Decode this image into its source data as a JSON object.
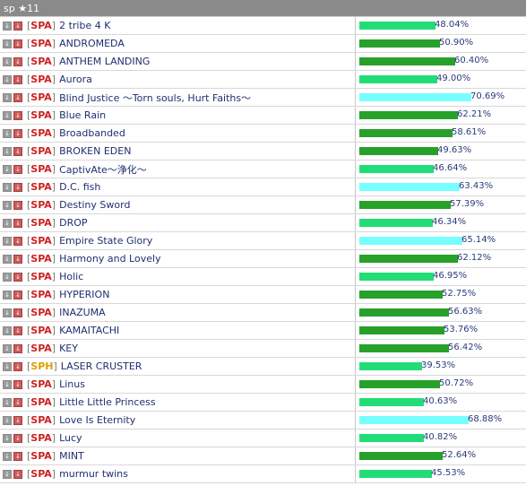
{
  "header": {
    "title": "sp ★11"
  },
  "colors": {
    "spa_tag": "#cc2222",
    "sph_tag": "#e0a000",
    "bar_green_light": "#22dd77",
    "bar_green_dark": "#27a12a",
    "bar_cyan": "#77ffff"
  },
  "icons": [
    "down-arrow-icon",
    "down-arrow-red-icon",
    "right-arrow-icon"
  ],
  "rows": [
    {
      "tag": "SPA",
      "title": "2 tribe 4 K",
      "percent": "48.04%",
      "value": 48.04,
      "color": "#22dd77"
    },
    {
      "tag": "SPA",
      "title": "ANDROMEDA",
      "percent": "50.90%",
      "value": 50.9,
      "color": "#27a12a"
    },
    {
      "tag": "SPA",
      "title": "ANTHEM LANDING",
      "percent": "60.40%",
      "value": 60.4,
      "color": "#27a12a"
    },
    {
      "tag": "SPA",
      "title": "Aurora",
      "percent": "49.00%",
      "value": 49.0,
      "color": "#22dd77"
    },
    {
      "tag": "SPA",
      "title": "Blind Justice ～Torn souls, Hurt Faiths～",
      "percent": "70.69%",
      "value": 70.69,
      "color": "#77ffff"
    },
    {
      "tag": "SPA",
      "title": "Blue Rain",
      "percent": "62.21%",
      "value": 62.21,
      "color": "#27a12a"
    },
    {
      "tag": "SPA",
      "title": "Broadbanded",
      "percent": "58.61%",
      "value": 58.61,
      "color": "#27a12a"
    },
    {
      "tag": "SPA",
      "title": "BROKEN EDEN",
      "percent": "49.63%",
      "value": 49.63,
      "color": "#27a12a"
    },
    {
      "tag": "SPA",
      "title": "CaptivAte～浄化～",
      "percent": "46.64%",
      "value": 46.64,
      "color": "#22dd77"
    },
    {
      "tag": "SPA",
      "title": "D.C. fish",
      "percent": "63.43%",
      "value": 63.43,
      "color": "#77ffff"
    },
    {
      "tag": "SPA",
      "title": "Destiny Sword",
      "percent": "57.39%",
      "value": 57.39,
      "color": "#27a12a"
    },
    {
      "tag": "SPA",
      "title": "DROP",
      "percent": "46.34%",
      "value": 46.34,
      "color": "#22dd77"
    },
    {
      "tag": "SPA",
      "title": "Empire State Glory",
      "percent": "65.14%",
      "value": 65.14,
      "color": "#77ffff"
    },
    {
      "tag": "SPA",
      "title": "Harmony and Lovely",
      "percent": "62.12%",
      "value": 62.12,
      "color": "#27a12a"
    },
    {
      "tag": "SPA",
      "title": "Holic",
      "percent": "46.95%",
      "value": 46.95,
      "color": "#22dd77"
    },
    {
      "tag": "SPA",
      "title": "HYPERION",
      "percent": "52.75%",
      "value": 52.75,
      "color": "#27a12a"
    },
    {
      "tag": "SPA",
      "title": "INAZUMA",
      "percent": "56.63%",
      "value": 56.63,
      "color": "#27a12a"
    },
    {
      "tag": "SPA",
      "title": "KAMAITACHI",
      "percent": "53.76%",
      "value": 53.76,
      "color": "#27a12a"
    },
    {
      "tag": "SPA",
      "title": "KEY",
      "percent": "56.42%",
      "value": 56.42,
      "color": "#27a12a"
    },
    {
      "tag": "SPH",
      "title": "LASER CRUSTER",
      "percent": "39.53%",
      "value": 39.53,
      "color": "#22dd77"
    },
    {
      "tag": "SPA",
      "title": "Linus",
      "percent": "50.72%",
      "value": 50.72,
      "color": "#27a12a"
    },
    {
      "tag": "SPA",
      "title": "Little Little Princess",
      "percent": "40.63%",
      "value": 40.63,
      "color": "#22dd77"
    },
    {
      "tag": "SPA",
      "title": "Love Is Eternity",
      "percent": "68.88%",
      "value": 68.88,
      "color": "#77ffff"
    },
    {
      "tag": "SPA",
      "title": "Lucy",
      "percent": "40.82%",
      "value": 40.82,
      "color": "#22dd77"
    },
    {
      "tag": "SPA",
      "title": "MINT",
      "percent": "52.64%",
      "value": 52.64,
      "color": "#27a12a"
    },
    {
      "tag": "SPA",
      "title": "murmur twins",
      "percent": "45.53%",
      "value": 45.53,
      "color": "#22dd77"
    }
  ]
}
